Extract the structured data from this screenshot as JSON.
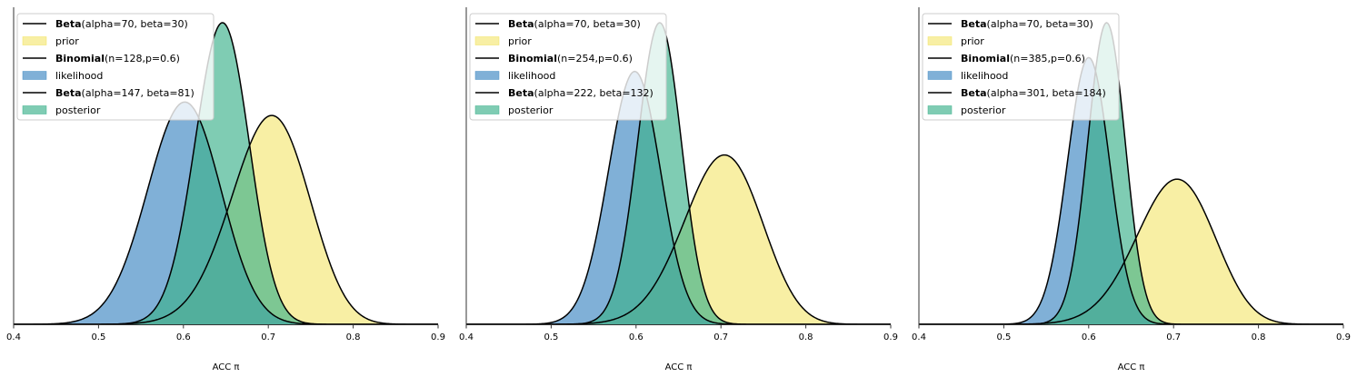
{
  "colors": {
    "prior": "#f2e25a",
    "likelihood": "#4a8fc6",
    "posterior": "#3ab08a",
    "line": "#000000",
    "axis": "#333333"
  },
  "chart_data": [
    {
      "type": "area",
      "xlabel": "ACC π",
      "xlim": [
        0.4,
        0.9
      ],
      "x_ticks": [
        "0.4",
        "0.5",
        "0.6",
        "0.7",
        "0.8",
        "0.9"
      ],
      "prior": {
        "dist": "Beta",
        "params": "(alpha=70, beta=30)",
        "label": "prior",
        "alpha": 70,
        "beta": 30
      },
      "likelihood": {
        "dist": "Binomial",
        "params": "(n=128,p=0.6)",
        "label": "likelihood",
        "n": 128,
        "p": 0.6
      },
      "posterior": {
        "dist": "Beta",
        "params": "(alpha=147, beta=81)",
        "label": "posterior",
        "alpha": 147,
        "beta": 81
      }
    },
    {
      "type": "area",
      "xlabel": "ACC π",
      "xlim": [
        0.4,
        0.9
      ],
      "x_ticks": [
        "0.4",
        "0.5",
        "0.6",
        "0.7",
        "0.8",
        "0.9"
      ],
      "prior": {
        "dist": "Beta",
        "params": "(alpha=70, beta=30)",
        "label": "prior",
        "alpha": 70,
        "beta": 30
      },
      "likelihood": {
        "dist": "Binomial",
        "params": "(n=254,p=0.6)",
        "label": "likelihood",
        "n": 254,
        "p": 0.6
      },
      "posterior": {
        "dist": "Beta",
        "params": "(alpha=222, beta=132)",
        "label": "posterior",
        "alpha": 222,
        "beta": 132
      }
    },
    {
      "type": "area",
      "xlabel": "ACC π",
      "xlim": [
        0.4,
        0.9
      ],
      "x_ticks": [
        "0.4",
        "0.5",
        "0.6",
        "0.7",
        "0.8",
        "0.9"
      ],
      "prior": {
        "dist": "Beta",
        "params": "(alpha=70, beta=30)",
        "label": "prior",
        "alpha": 70,
        "beta": 30
      },
      "likelihood": {
        "dist": "Binomial",
        "params": "(n=385,p=0.6)",
        "label": "likelihood",
        "n": 385,
        "p": 0.6
      },
      "posterior": {
        "dist": "Beta",
        "params": "(alpha=301, beta=184)",
        "label": "posterior",
        "alpha": 301,
        "beta": 184
      }
    }
  ]
}
